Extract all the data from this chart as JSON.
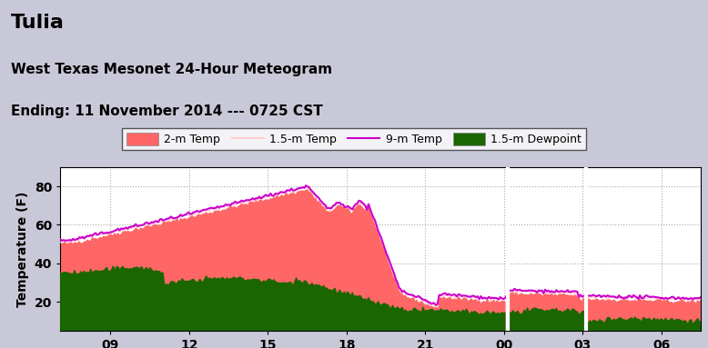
{
  "title": "Tulia",
  "subtitle1": "West Texas Mesonet 24-Hour Meteogram",
  "subtitle2": "Ending: 11 November 2014 --- 0725 CST",
  "ylabel": "Temperature (F)",
  "bg_color": "#c8c8d8",
  "plot_bg": "#ffffff",
  "yticks": [
    20,
    40,
    60,
    80
  ],
  "ylim": [
    5,
    90
  ],
  "xtick_labels": [
    "09",
    "12",
    "15",
    "18",
    "21",
    "00",
    "03",
    "06"
  ],
  "xtick_positions": [
    9,
    12,
    15,
    18,
    21,
    24,
    27,
    30
  ],
  "xlim": [
    7.08,
    31.5
  ],
  "colors": {
    "temp_2m_fill": "#ff6666",
    "temp_15m_line": "#ffcccc",
    "temp_9m_line": "#cc00cc",
    "dewpoint_fill": "#1a6600",
    "grid": "#888888"
  },
  "title_fontsize": 16,
  "subtitle_fontsize": 11,
  "tick_fontsize": 10,
  "ylabel_fontsize": 10
}
